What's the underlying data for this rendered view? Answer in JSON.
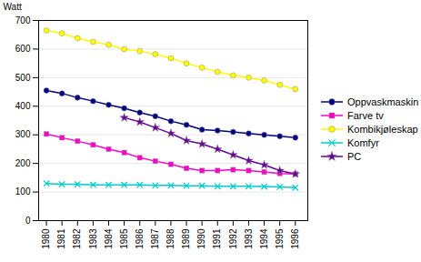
{
  "chart_data": {
    "type": "line",
    "x": [
      1980,
      1981,
      1982,
      1983,
      1984,
      1985,
      1986,
      1987,
      1988,
      1989,
      1990,
      1991,
      1992,
      1993,
      1994,
      1995,
      1996
    ],
    "series": [
      {
        "name": "Oppvaskmaskin",
        "color": "#000080",
        "marker": "circle",
        "values": [
          455,
          445,
          430,
          418,
          405,
          393,
          378,
          365,
          348,
          335,
          318,
          315,
          310,
          305,
          300,
          295,
          290
        ]
      },
      {
        "name": "Farve tv",
        "color": "#FF00CC",
        "marker": "square",
        "values": [
          303,
          290,
          278,
          265,
          250,
          238,
          220,
          208,
          197,
          183,
          175,
          175,
          178,
          175,
          170,
          165,
          163
        ]
      },
      {
        "name": "Kombikjøleskap",
        "color": "#FFFF00",
        "marker": "circle",
        "values": [
          665,
          655,
          638,
          625,
          615,
          600,
          593,
          582,
          568,
          550,
          535,
          520,
          508,
          500,
          490,
          475,
          460
        ]
      },
      {
        "name": "Komfyr",
        "color": "#00CCCC",
        "marker": "x",
        "values": [
          130,
          127,
          127,
          125,
          125,
          125,
          125,
          123,
          123,
          122,
          122,
          120,
          120,
          120,
          119,
          118,
          115
        ]
      },
      {
        "name": "PC",
        "color": "#660099",
        "marker": "star",
        "values": [
          null,
          null,
          null,
          null,
          null,
          360,
          345,
          325,
          305,
          280,
          268,
          250,
          230,
          210,
          195,
          175,
          163
        ]
      }
    ],
    "ylabel": "Watt",
    "xlim": [
      1979.5,
      1996.8
    ],
    "xticks": [
      1980,
      1981,
      1982,
      1983,
      1984,
      1985,
      1986,
      1987,
      1988,
      1989,
      1990,
      1991,
      1992,
      1993,
      1994,
      1995,
      1996
    ],
    "ylim": [
      0,
      700
    ],
    "yticks": [
      0,
      100,
      200,
      300,
      400,
      500,
      600,
      700
    ],
    "grid": true,
    "legend": "right"
  }
}
